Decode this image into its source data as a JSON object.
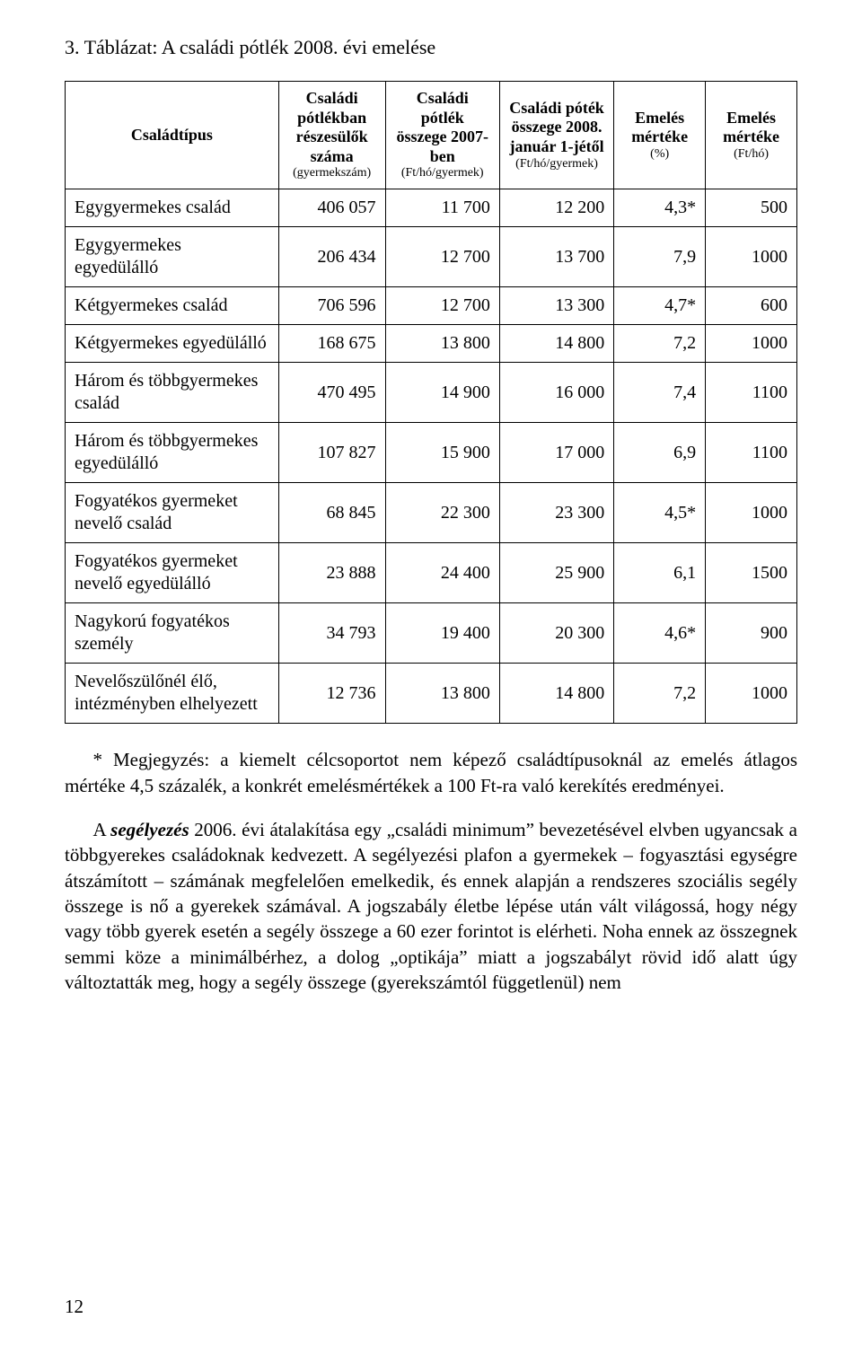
{
  "title": "3. Táblázat: A családi pótlék 2008. évi emelése",
  "headers": {
    "family_type": {
      "main": "Családtípus",
      "sub": ""
    },
    "count": {
      "main": "Családi pótlékban részesülők száma",
      "sub": "(gyermekszám)"
    },
    "sum2007": {
      "main": "Családi pótlék összege 2007-ben",
      "sub": "(Ft/hó/gyermek)"
    },
    "sum2008": {
      "main": "Családi póték összege 2008. január 1-jétől",
      "sub": "(Ft/hó/gyermek)"
    },
    "pct": {
      "main": "Emelés mértéke",
      "sub": "(%)"
    },
    "ft": {
      "main": "Emelés mértéke",
      "sub": "(Ft/hó)"
    }
  },
  "rows": [
    {
      "type": "Egygyermekes család",
      "count": "406 057",
      "s2007": "11 700",
      "s2008": "12 200",
      "pct": "4,3*",
      "ft": "500"
    },
    {
      "type": "Egygyermekes egyedülálló",
      "count": "206 434",
      "s2007": "12 700",
      "s2008": "13 700",
      "pct": "7,9",
      "ft": "1000"
    },
    {
      "type": "Kétgyermekes család",
      "count": "706 596",
      "s2007": "12 700",
      "s2008": "13 300",
      "pct": "4,7*",
      "ft": "600"
    },
    {
      "type": "Kétgyermekes egyedülálló",
      "count": "168 675",
      "s2007": "13 800",
      "s2008": "14 800",
      "pct": "7,2",
      "ft": "1000"
    },
    {
      "type": "Három és többgyermekes család",
      "count": "470 495",
      "s2007": "14 900",
      "s2008": "16 000",
      "pct": "7,4",
      "ft": "1100"
    },
    {
      "type": "Három és többgyermekes egyedülálló",
      "count": "107 827",
      "s2007": "15 900",
      "s2008": "17 000",
      "pct": "6,9",
      "ft": "1100"
    },
    {
      "type": "Fogyatékos gyermeket nevelő család",
      "count": "68 845",
      "s2007": "22 300",
      "s2008": "23 300",
      "pct": "4,5*",
      "ft": "1000"
    },
    {
      "type": "Fogyatékos gyermeket nevelő egyedülálló",
      "count": "23 888",
      "s2007": "24 400",
      "s2008": "25 900",
      "pct": "6,1",
      "ft": "1500"
    },
    {
      "type": "Nagykorú fogyatékos személy",
      "count": "34 793",
      "s2007": "19 400",
      "s2008": "20 300",
      "pct": "4,6*",
      "ft": "900"
    },
    {
      "type": "Nevelőszülőnél élő, intézményben elhelyezett",
      "count": "12 736",
      "s2007": "13 800",
      "s2008": "14 800",
      "pct": "7,2",
      "ft": "1000"
    }
  ],
  "note": "* Megjegyzés: a kiemelt célcsoportot nem képező családtípusoknál az emelés átlagos mértéke 4,5 százalék, a konkrét emelésmértékek a 100 Ft-ra való kerekítés eredményei.",
  "body_prefix": "A ",
  "body_term": "segélyezés",
  "body_rest": " 2006. évi átalakítása egy „családi minimum” bevezetésével elvben ugyancsak a többgyerekes családoknak kedvezett. A segélyezési plafon a gyermekek – fogyasztási egységre átszámított – számának megfelelően emelkedik, és ennek alapján a rendszeres szociális segély összege is nő a gyerekek számával. A jogszabály életbe lépése után vált világossá, hogy négy vagy több gyerek esetén a segély összege a 60 ezer forintot is elérheti. Noha ennek az összegnek semmi köze a minimálbérhez, a dolog „optikája” miatt a jogszabályt rövid idő alatt úgy változtatták meg, hogy a segély összege (gyerekszámtól függetlenül) nem",
  "page_number": "12"
}
